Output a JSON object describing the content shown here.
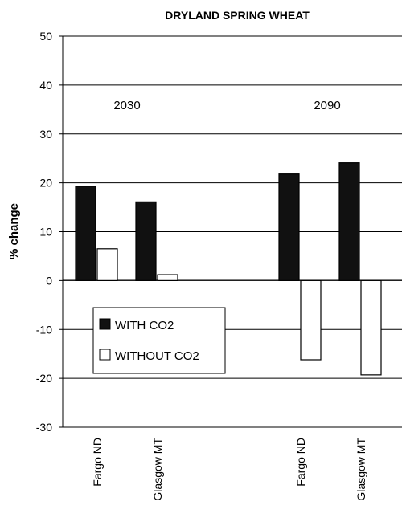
{
  "chart_data": {
    "type": "bar",
    "title": "DRYLAND SPRING WHEAT",
    "ylabel": "% change",
    "xlabel": "",
    "ylim": [
      -30,
      50
    ],
    "yticks": [
      50,
      40,
      30,
      20,
      10,
      0,
      -10,
      -20,
      -30
    ],
    "grid": "horizontal",
    "period_labels": [
      "2030",
      "2090"
    ],
    "categories": [
      "Fargo ND",
      "Glasgow MT",
      "Fargo ND",
      "Glasgow MT"
    ],
    "category_period": [
      0,
      0,
      1,
      1
    ],
    "series": [
      {
        "name": "WITH CO2",
        "values": [
          19.3,
          16.1,
          21.8,
          24.1
        ],
        "color": "#111111"
      },
      {
        "name": "WITHOUT CO2",
        "values": [
          6.5,
          1.2,
          -16.2,
          -19.3
        ],
        "color": "#ffffff"
      }
    ],
    "legend_position": "lower-left inside plot"
  }
}
